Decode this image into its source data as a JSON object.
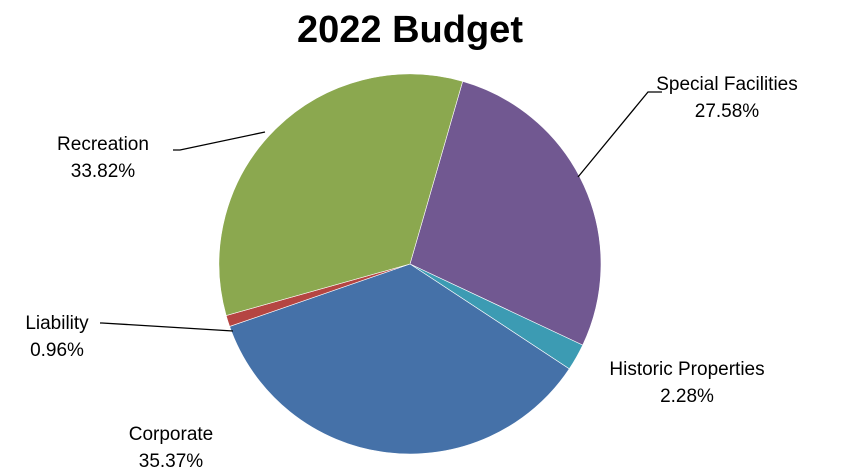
{
  "chart_data": {
    "type": "pie",
    "title": "2022 Budget",
    "slices": [
      {
        "label": "Special Facilities",
        "value": 27.58,
        "value_label": "27.58%",
        "color": "#715891"
      },
      {
        "label": "Historic Properties",
        "value": 2.28,
        "value_label": "2.28%",
        "color": "#3c9bb3"
      },
      {
        "label": "Corporate",
        "value": 35.37,
        "value_label": "35.37%",
        "color": "#4571a8"
      },
      {
        "label": "Liability",
        "value": 0.96,
        "value_label": "0.96%",
        "color": "#b54542"
      },
      {
        "label": "Recreation",
        "value": 33.82,
        "value_label": "33.82%",
        "color": "#8ba84f"
      }
    ],
    "start_angle_deg": 16,
    "direction": "clockwise",
    "legend": "none"
  }
}
